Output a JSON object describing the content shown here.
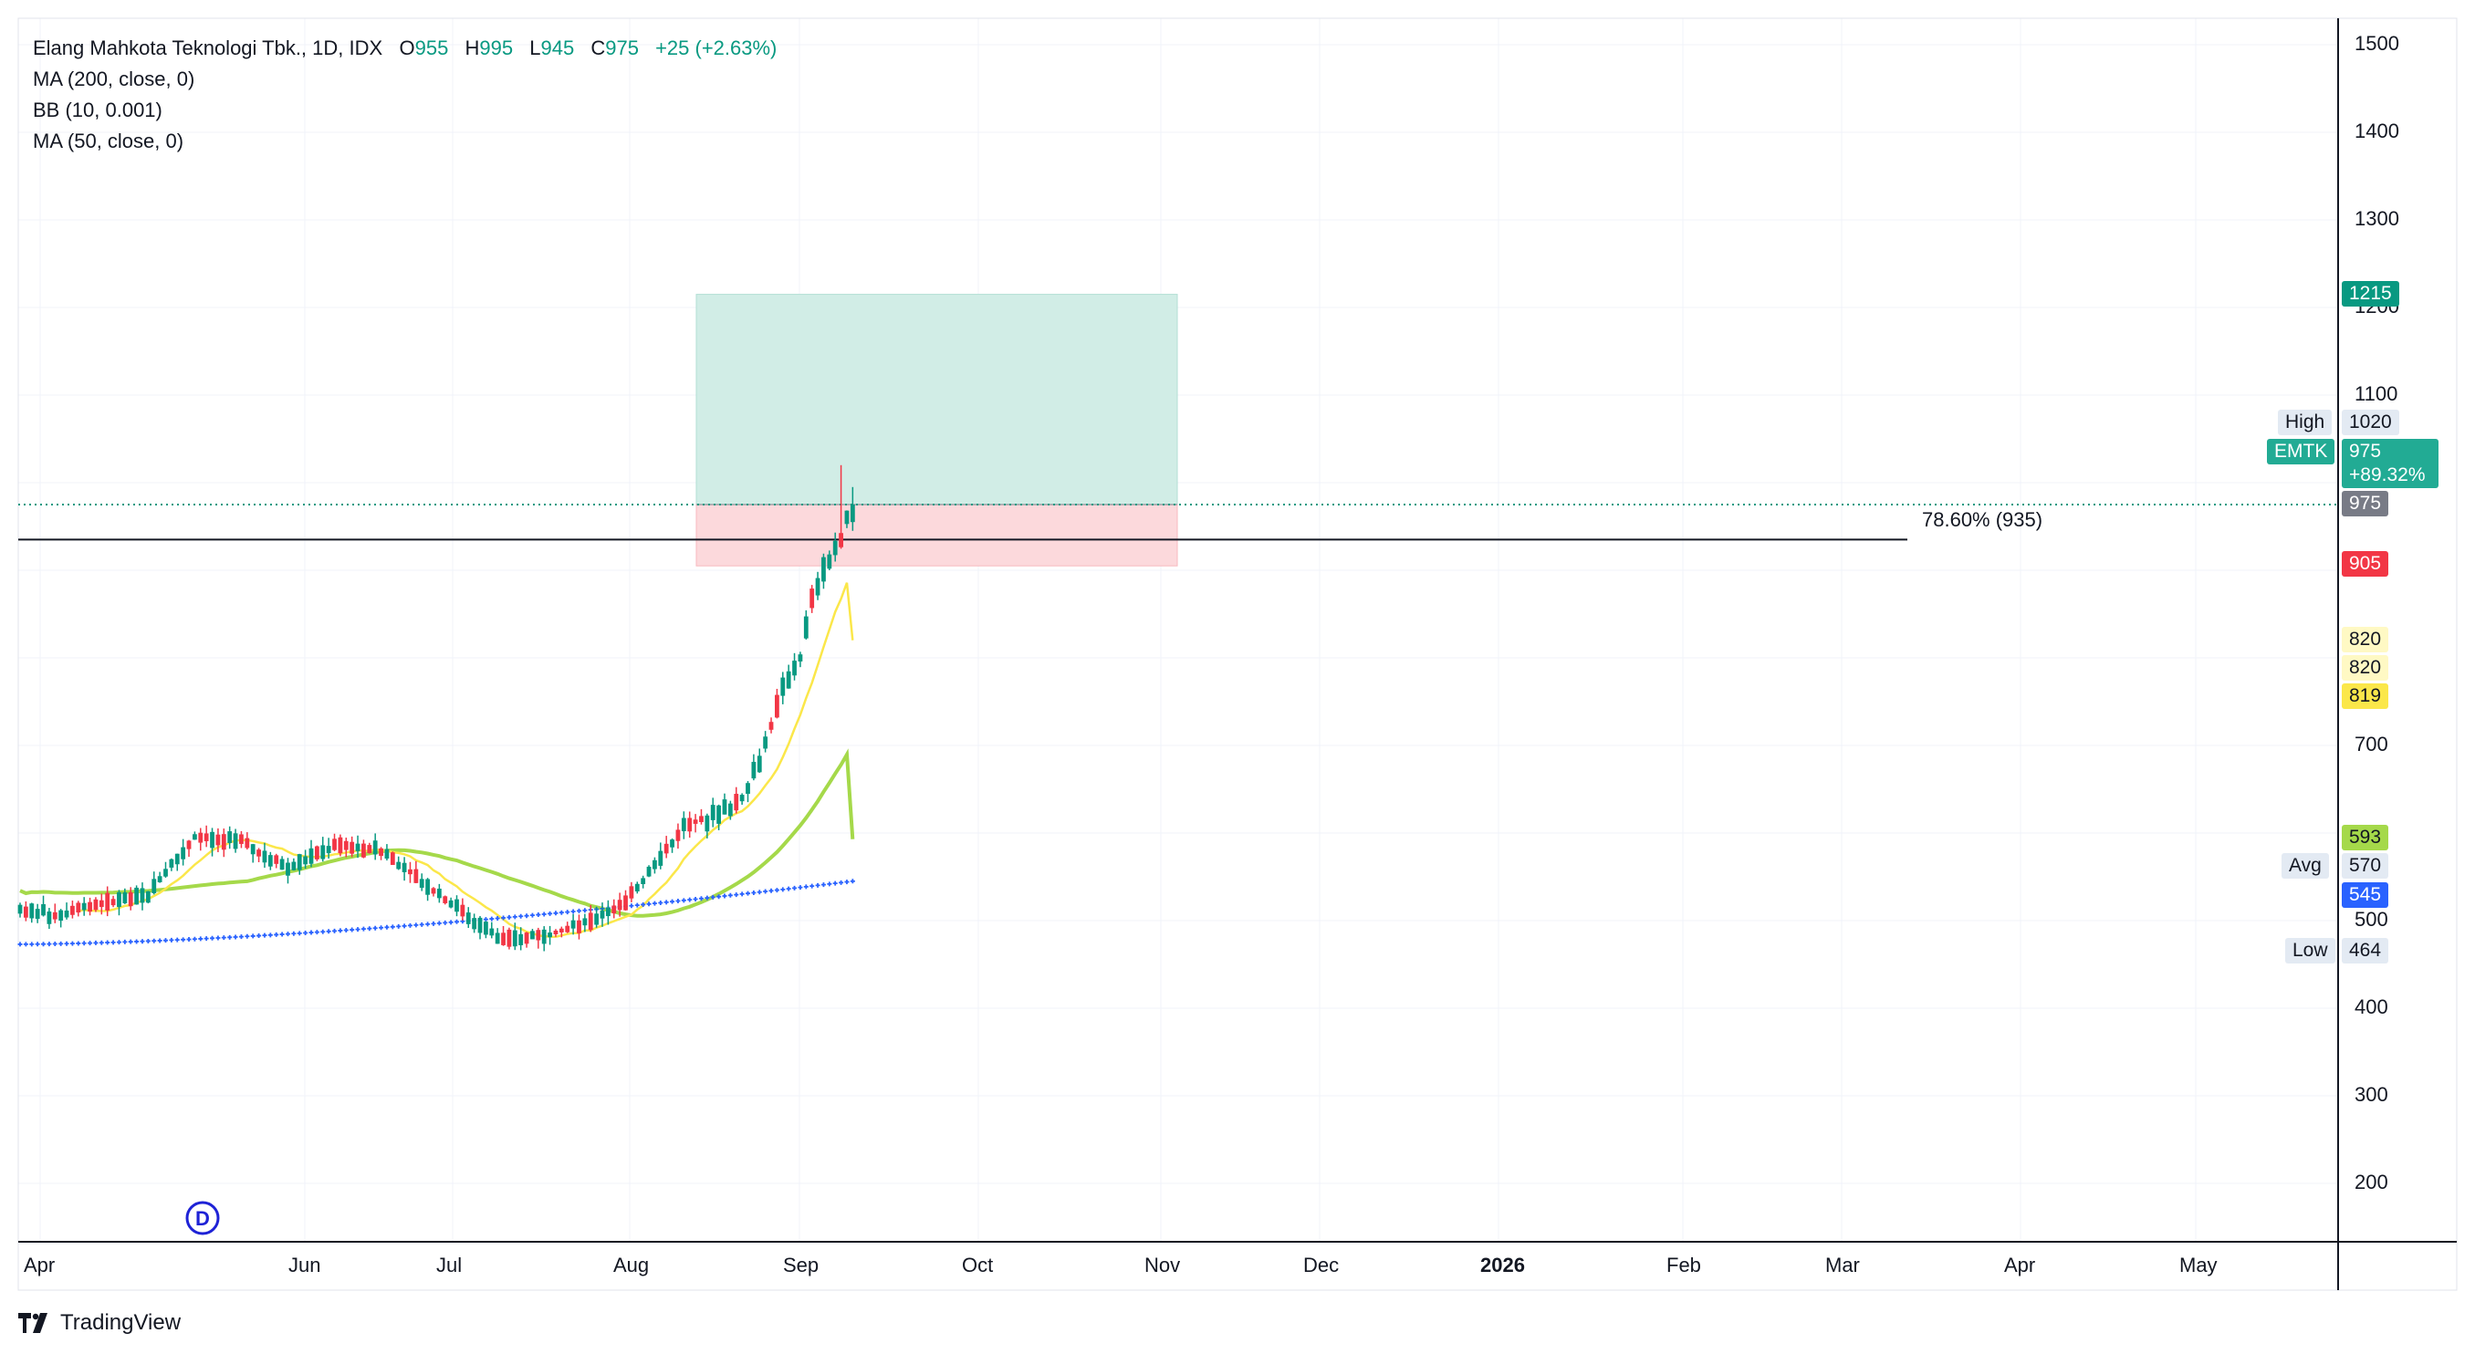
{
  "legend": {
    "symbol_title": "Elang Mahkota Teknologi Tbk., 1D, IDX",
    "open_label": "O",
    "open_value": "955",
    "high_label": "H",
    "high_value": "995",
    "low_label": "L",
    "low_value": "945",
    "close_label": "C",
    "close_value": "975",
    "change": "+25 (+2.63%)",
    "indicators": [
      "MA (200, close, 0)",
      "BB (10, 0.001)",
      "MA (50, close, 0)"
    ]
  },
  "price_axis": {
    "ticks": [
      "1500",
      "1400",
      "1300",
      "1200",
      "1100",
      "700",
      "500",
      "400",
      "300",
      "200"
    ]
  },
  "time_axis": {
    "ticks": [
      "Apr",
      "Jun",
      "Jul",
      "Aug",
      "Sep",
      "Oct",
      "Nov",
      "Dec",
      "2026",
      "Feb",
      "Mar",
      "Apr",
      "May"
    ]
  },
  "price_tags": {
    "target": "1215",
    "high_label": "High",
    "high_value": "1020",
    "symbol_label": "EMTK",
    "symbol_price": "975",
    "symbol_change": "+89.32%",
    "last": "975",
    "stop": "905",
    "bb_upper": "820",
    "bb_mid": "820",
    "bb_lower": "819",
    "ma50": "593",
    "avg_label": "Avg",
    "avg_value": "570",
    "ma200": "545",
    "low_label": "Low",
    "low_value": "464"
  },
  "fib_label": "78.60% (935)",
  "event_marker": "D",
  "branding": "TradingView",
  "colors": {
    "up": "#089981",
    "down": "#f23645",
    "ma50": "#a5d94a",
    "ma200": "#2962ff",
    "bb": "#fbe74a",
    "target_zone": "#d1ede6",
    "stop_zone": "#fcd9dc"
  },
  "chart_data": {
    "type": "candlestick",
    "title": "Elang Mahkota Teknologi Tbk., 1D, IDX",
    "ylim": [
      130,
      1520
    ],
    "x_range": [
      "2025-04-01",
      "2026-05-31"
    ],
    "last_candle": {
      "open": 955,
      "high": 995,
      "low": 945,
      "close": 975
    },
    "series": [
      {
        "name": "MA (50, close, 0)",
        "last": 593
      },
      {
        "name": "MA (200, close, 0)",
        "last": 545
      },
      {
        "name": "BB (10, 0.001)",
        "last": 820
      }
    ],
    "fib_level": {
      "label": "78.60% (935)",
      "price": 935
    },
    "position": {
      "entry": 975,
      "target": 1215,
      "stop": 905
    },
    "range_high": 1020,
    "range_low": 464,
    "average": 570
  }
}
